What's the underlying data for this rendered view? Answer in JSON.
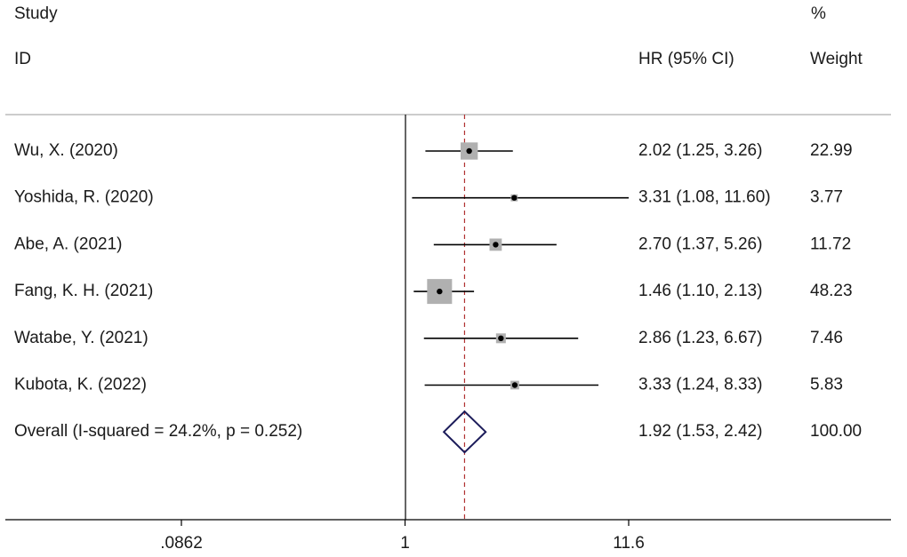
{
  "header": {
    "col_study_line1": "Study",
    "col_study_line2": "ID",
    "col_estimate": "HR (95% CI)",
    "col_weight_line1": "%",
    "col_weight_line2": "Weight"
  },
  "chart_data": {
    "type": "forest",
    "effect_measure": "HR (95% CI)",
    "x_scale": "log",
    "xlim": [
      0.0862,
      11.6
    ],
    "xticks": [
      0.0862,
      1,
      11.6
    ],
    "xtick_labels": [
      ".0862",
      "1",
      "11.6"
    ],
    "null_line": 1,
    "pooled_reference_line": 1.92,
    "studies": [
      {
        "label": "Wu, X. (2020)",
        "hr": 2.02,
        "lower": 1.25,
        "upper": 3.26,
        "ci_text": "2.02 (1.25, 3.26)",
        "weight": 22.99,
        "weight_text": "22.99"
      },
      {
        "label": "Yoshida, R. (2020)",
        "hr": 3.31,
        "lower": 1.08,
        "upper": 11.6,
        "ci_text": "3.31 (1.08, 11.60)",
        "weight": 3.77,
        "weight_text": "3.77"
      },
      {
        "label": "Abe, A. (2021)",
        "hr": 2.7,
        "lower": 1.37,
        "upper": 5.26,
        "ci_text": "2.70 (1.37, 5.26)",
        "weight": 11.72,
        "weight_text": "11.72"
      },
      {
        "label": "Fang, K. H. (2021)",
        "hr": 1.46,
        "lower": 1.1,
        "upper": 2.13,
        "ci_text": "1.46 (1.10, 2.13)",
        "weight": 48.23,
        "weight_text": "48.23"
      },
      {
        "label": "Watabe, Y. (2021)",
        "hr": 2.86,
        "lower": 1.23,
        "upper": 6.67,
        "ci_text": "2.86 (1.23, 6.67)",
        "weight": 7.46,
        "weight_text": "7.46"
      },
      {
        "label": "Kubota, K. (2022)",
        "hr": 3.33,
        "lower": 1.24,
        "upper": 8.33,
        "ci_text": "3.33 (1.24, 8.33)",
        "weight": 5.83,
        "weight_text": "5.83"
      }
    ],
    "overall": {
      "label": "Overall  (I-squared = 24.2%, p = 0.252)",
      "hr": 1.92,
      "lower": 1.53,
      "upper": 2.42,
      "ci_text": "1.92 (1.53, 2.42)",
      "weight": 100.0,
      "weight_text": "100.00"
    },
    "colors": {
      "axis": "#000000",
      "ci_line": "#000000",
      "weight_box": "#b0b0b0",
      "point": "#000000",
      "reference_line": "#b03030",
      "diamond": "#1c1c5a"
    }
  }
}
